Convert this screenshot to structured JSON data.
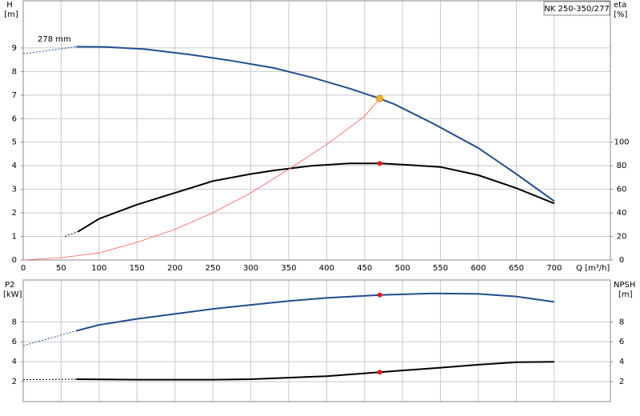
{
  "chart_data": [
    {
      "type": "line",
      "title": "NK 250-350/277",
      "annotation": "278 mm",
      "y_label": "H",
      "y_unit": "[m]",
      "y2_label": "eta",
      "y2_unit": "[%]",
      "x_label": "Q [m³/h]",
      "xlim": [
        0,
        774
      ],
      "ylim": [
        0,
        11
      ],
      "y2lim": [
        0,
        220
      ],
      "xticks": [
        0,
        50,
        100,
        150,
        200,
        250,
        300,
        350,
        400,
        450,
        500,
        550,
        600,
        650,
        700
      ],
      "yticks": [
        0,
        1,
        2,
        3,
        4,
        5,
        6,
        7,
        8,
        9
      ],
      "y2ticks": [
        0,
        20,
        40,
        60,
        80,
        100
      ],
      "grid": true,
      "series": [
        {
          "color": "#1f4e8c",
          "dashed": true,
          "x": [
            0,
            70
          ],
          "values": [
            8.75,
            9.05
          ]
        },
        {
          "color": "#1f4e8c",
          "x": [
            70,
            110,
            160,
            220,
            270,
            330,
            380,
            430,
            470,
            490,
            540,
            600,
            650,
            700
          ],
          "values": [
            9.05,
            9.04,
            8.95,
            8.72,
            8.48,
            8.15,
            7.75,
            7.28,
            6.85,
            6.6,
            5.8,
            4.75,
            3.65,
            2.5
          ]
        },
        {
          "color": "#000000",
          "dashed": true,
          "axis": "y2",
          "x": [
            55,
            72
          ],
          "values": [
            20,
            24
          ]
        },
        {
          "color": "#000000",
          "axis": "y2",
          "x": [
            72,
            100,
            150,
            200,
            250,
            300,
            330,
            380,
            430,
            470,
            500,
            550,
            600,
            650,
            700
          ],
          "values": [
            24,
            35,
            47,
            57,
            67,
            73,
            76,
            80,
            82,
            82,
            81,
            79,
            72,
            61,
            48
          ]
        },
        {
          "color": "#ff5a5a",
          "thin": true,
          "x": [
            0,
            50,
            100,
            150,
            200,
            250,
            300,
            350,
            400,
            450,
            470
          ],
          "values": [
            0,
            0.1,
            0.3,
            0.75,
            1.3,
            2.0,
            2.85,
            3.85,
            4.9,
            6.1,
            6.85
          ]
        }
      ],
      "markers": [
        {
          "x": 470,
          "value": 6.85,
          "color": "#f5b82e"
        },
        {
          "x": 470,
          "value": 82,
          "color": "#e8141e",
          "axis": "y2"
        }
      ]
    },
    {
      "type": "line",
      "y_label": "P2",
      "y_unit": "[kW]",
      "y2_label": "NPSH",
      "y2_unit": "[m]",
      "xlim": [
        0,
        774
      ],
      "ylim": [
        0,
        12.2
      ],
      "y2lim": [
        0,
        12.2
      ],
      "yticks": [
        2,
        4,
        6,
        8
      ],
      "y2ticks": [
        2,
        4,
        6,
        8
      ],
      "grid": true,
      "series": [
        {
          "color": "#1f4e8c",
          "dashed": true,
          "x": [
            0,
            70
          ],
          "values": [
            5.6,
            7.1
          ]
        },
        {
          "color": "#1f4e8c",
          "x": [
            70,
            100,
            150,
            200,
            250,
            300,
            350,
            400,
            470,
            540,
            600,
            650,
            700
          ],
          "values": [
            7.1,
            7.7,
            8.3,
            8.8,
            9.3,
            9.7,
            10.1,
            10.4,
            10.7,
            10.85,
            10.8,
            10.55,
            10.0
          ]
        },
        {
          "color": "#000000",
          "dashed": true,
          "axis": "y2",
          "x": [
            0,
            70
          ],
          "values": [
            2.2,
            2.25
          ]
        },
        {
          "color": "#000000",
          "axis": "y2",
          "x": [
            70,
            150,
            200,
            250,
            300,
            350,
            400,
            470,
            550,
            600,
            650,
            700
          ],
          "values": [
            2.25,
            2.2,
            2.2,
            2.2,
            2.25,
            2.4,
            2.55,
            2.95,
            3.4,
            3.7,
            3.95,
            4.0
          ]
        }
      ],
      "markers": [
        {
          "x": 470,
          "value": 10.7,
          "color": "#e8141e"
        },
        {
          "x": 470,
          "value": 2.95,
          "color": "#e8141e",
          "axis": "y2"
        }
      ]
    }
  ]
}
